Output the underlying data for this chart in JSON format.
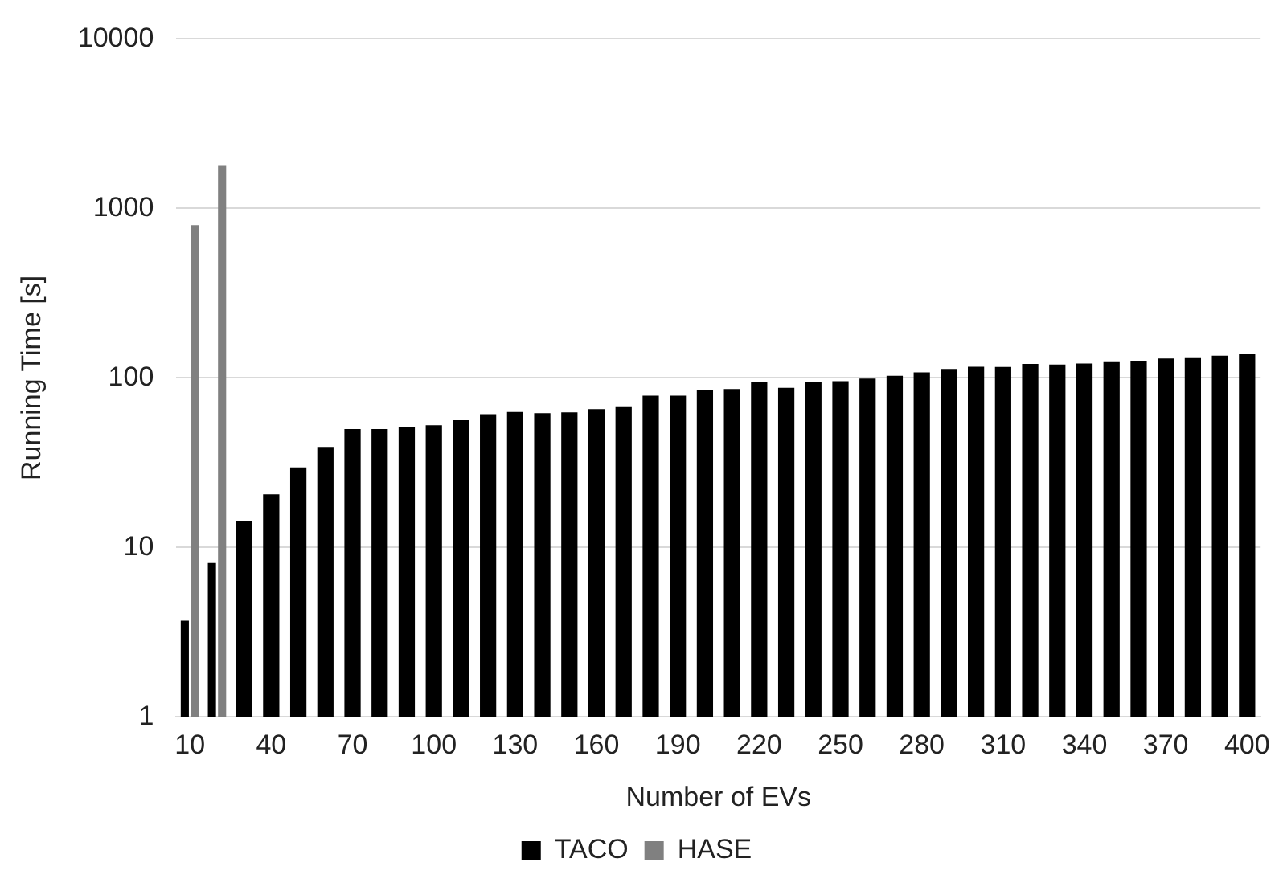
{
  "chart_data": {
    "type": "bar",
    "xlabel": "Number of EVs",
    "ylabel": "Running Time [s]",
    "categories": [
      "10",
      null,
      null,
      "40",
      null,
      null,
      "70",
      null,
      null,
      "100",
      null,
      null,
      "130",
      null,
      null,
      "160",
      null,
      null,
      "190",
      null,
      null,
      "220",
      null,
      null,
      "250",
      null,
      null,
      "280",
      null,
      null,
      "310",
      null,
      null,
      "340",
      null,
      null,
      "370",
      null,
      null,
      "400"
    ],
    "series": [
      {
        "name": "TACO",
        "color": "#000000",
        "values": [
          3.7,
          8.1,
          14.3,
          20.6,
          29.7,
          39.2,
          50,
          50,
          51.4,
          52.6,
          56.3,
          61.2,
          63,
          62,
          62.6,
          65.5,
          68,
          78.5,
          78.5,
          84.7,
          86,
          94.1,
          87.3,
          94.9,
          95.6,
          99,
          103,
          107.8,
          112.8,
          116.3,
          116,
          120.8,
          119.9,
          121.7,
          125.4,
          126.4,
          130.2,
          132.2,
          135.3,
          138.3
        ]
      },
      {
        "name": "HASE",
        "color": "#808080",
        "values": [
          797,
          1802,
          null,
          null,
          null,
          null,
          null,
          null,
          null,
          null,
          null,
          null,
          null,
          null,
          null,
          null,
          null,
          null,
          null,
          null,
          null,
          null,
          null,
          null,
          null,
          null,
          null,
          null,
          null,
          null,
          null,
          null,
          null,
          null,
          null,
          null,
          null,
          null,
          null,
          null
        ]
      }
    ],
    "log": "y",
    "ylim": [
      1,
      10000
    ],
    "yticks": [
      1,
      10,
      100,
      1000,
      10000
    ],
    "grid": "y",
    "legend": "bottom"
  }
}
